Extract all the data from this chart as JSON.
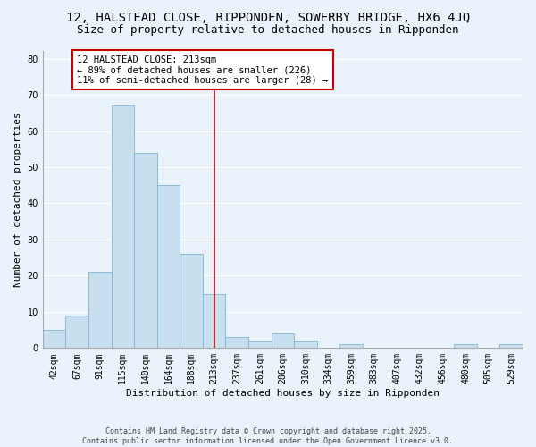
{
  "title": "12, HALSTEAD CLOSE, RIPPONDEN, SOWERBY BRIDGE, HX6 4JQ",
  "subtitle": "Size of property relative to detached houses in Ripponden",
  "xlabel": "Distribution of detached houses by size in Ripponden",
  "ylabel": "Number of detached properties",
  "bin_labels": [
    "42sqm",
    "67sqm",
    "91sqm",
    "115sqm",
    "140sqm",
    "164sqm",
    "188sqm",
    "213sqm",
    "237sqm",
    "261sqm",
    "286sqm",
    "310sqm",
    "334sqm",
    "359sqm",
    "383sqm",
    "407sqm",
    "432sqm",
    "456sqm",
    "480sqm",
    "505sqm",
    "529sqm"
  ],
  "bar_values": [
    5,
    9,
    21,
    67,
    54,
    45,
    26,
    15,
    3,
    2,
    4,
    2,
    0,
    1,
    0,
    0,
    0,
    0,
    1,
    0,
    1
  ],
  "bar_color": "#c8dff0",
  "bar_edge_color": "#7fb3d3",
  "vline_label_index": 7,
  "vline_color": "#cc0000",
  "annotation_title": "12 HALSTEAD CLOSE: 213sqm",
  "annotation_line1": "← 89% of detached houses are smaller (226)",
  "annotation_line2": "11% of semi-detached houses are larger (28) →",
  "annotation_box_color": "#ffffff",
  "annotation_box_edge": "#cc0000",
  "ylim": [
    0,
    82
  ],
  "yticks": [
    0,
    10,
    20,
    30,
    40,
    50,
    60,
    70,
    80
  ],
  "footer_line1": "Contains HM Land Registry data © Crown copyright and database right 2025.",
  "footer_line2": "Contains public sector information licensed under the Open Government Licence v3.0.",
  "background_color": "#eaf3fb",
  "grid_color": "#ffffff",
  "title_fontsize": 10,
  "subtitle_fontsize": 9,
  "axis_fontsize": 8,
  "tick_fontsize": 7,
  "annot_fontsize": 7.5,
  "footer_fontsize": 6
}
